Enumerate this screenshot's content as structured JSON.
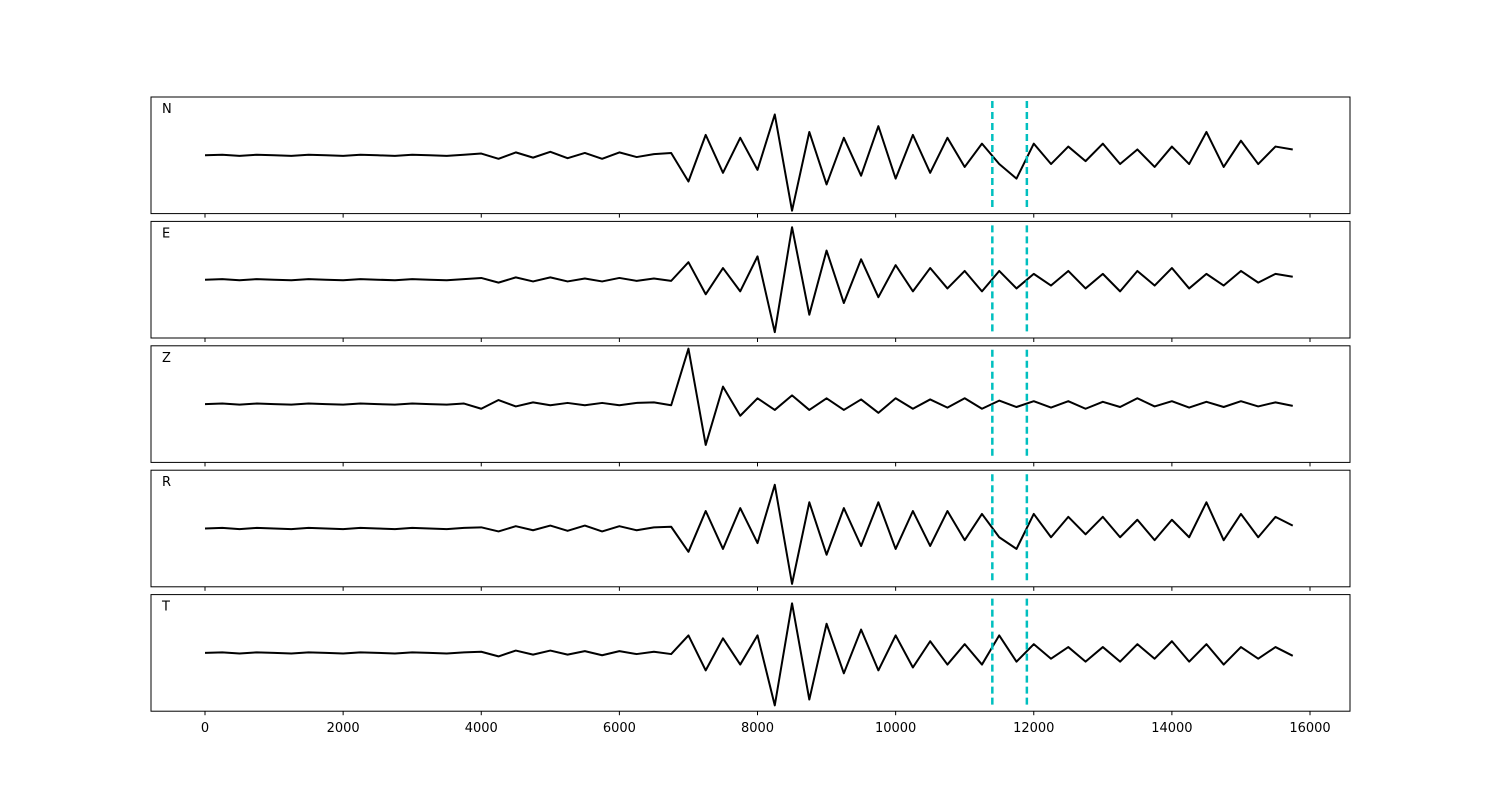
{
  "chart_data": [
    {
      "type": "line",
      "label": "N",
      "color": "#000000",
      "linewidth": 2,
      "vlines": [
        11400,
        11900
      ],
      "vline_color": "#00bfbf",
      "xlim": [
        -782,
        16579
      ],
      "ylim": [
        -1,
        1
      ],
      "xticks": [
        0,
        2000,
        4000,
        6000,
        8000,
        10000,
        12000,
        14000,
        16000
      ],
      "x": [
        0,
        250,
        500,
        750,
        1000,
        1250,
        1500,
        1750,
        2000,
        2250,
        2500,
        2750,
        3000,
        3250,
        3500,
        3750,
        4000,
        4250,
        4500,
        4750,
        5000,
        5250,
        5500,
        5750,
        6000,
        6250,
        6500,
        6750,
        7000,
        7250,
        7500,
        7750,
        8000,
        8250,
        8500,
        8750,
        9000,
        9250,
        9500,
        9750,
        10000,
        10250,
        10500,
        10750,
        11000,
        11250,
        11500,
        11750,
        12000,
        12250,
        12500,
        12750,
        13000,
        13250,
        13500,
        13750,
        14000,
        14250,
        14500,
        14750,
        15000,
        15250,
        15500,
        15750
      ],
      "values": [
        0,
        0.01,
        -0.01,
        0.01,
        0,
        -0.01,
        0.01,
        0,
        -0.01,
        0.01,
        0,
        -0.01,
        0.01,
        0,
        -0.01,
        0.01,
        0.03,
        -0.06,
        0.05,
        -0.04,
        0.06,
        -0.05,
        0.04,
        -0.06,
        0.05,
        -0.03,
        0.02,
        0.04,
        -0.45,
        0.35,
        -0.3,
        0.3,
        -0.25,
        0.7,
        -0.95,
        0.4,
        -0.5,
        0.3,
        -0.35,
        0.5,
        -0.4,
        0.35,
        -0.3,
        0.3,
        -0.2,
        0.2,
        -0.15,
        -0.4,
        0.2,
        -0.15,
        0.15,
        -0.1,
        0.2,
        -0.15,
        0.1,
        -0.2,
        0.15,
        -0.15,
        0.4,
        -0.2,
        0.25,
        -0.15,
        0.15,
        0.1
      ]
    },
    {
      "type": "line",
      "label": "E",
      "color": "#000000",
      "linewidth": 2,
      "vlines": [
        11400,
        11900
      ],
      "vline_color": "#00bfbf",
      "xlim": [
        -782,
        16579
      ],
      "ylim": [
        -1,
        1
      ],
      "xticks": [
        0,
        2000,
        4000,
        6000,
        8000,
        10000,
        12000,
        14000,
        16000
      ],
      "x": [
        0,
        250,
        500,
        750,
        1000,
        1250,
        1500,
        1750,
        2000,
        2250,
        2500,
        2750,
        3000,
        3250,
        3500,
        3750,
        4000,
        4250,
        4500,
        4750,
        5000,
        5250,
        5500,
        5750,
        6000,
        6250,
        6500,
        6750,
        7000,
        7250,
        7500,
        7750,
        8000,
        8250,
        8500,
        8750,
        9000,
        9250,
        9500,
        9750,
        10000,
        10250,
        10500,
        10750,
        11000,
        11250,
        11500,
        11750,
        12000,
        12250,
        12500,
        12750,
        13000,
        13250,
        13500,
        13750,
        14000,
        14250,
        14500,
        14750,
        15000,
        15250,
        15500,
        15750
      ],
      "values": [
        0,
        0.01,
        -0.01,
        0.01,
        0,
        -0.01,
        0.01,
        0,
        -0.01,
        0.01,
        0,
        -0.01,
        0.01,
        0,
        -0.01,
        0.01,
        0.03,
        -0.05,
        0.04,
        -0.03,
        0.04,
        -0.03,
        0.02,
        -0.03,
        0.03,
        -0.02,
        0.02,
        -0.02,
        0.3,
        -0.25,
        0.2,
        -0.2,
        0.4,
        -0.9,
        0.9,
        -0.6,
        0.5,
        -0.4,
        0.35,
        -0.3,
        0.25,
        -0.2,
        0.2,
        -0.15,
        0.15,
        -0.2,
        0.15,
        -0.15,
        0.1,
        -0.1,
        0.15,
        -0.15,
        0.1,
        -0.2,
        0.15,
        -0.1,
        0.2,
        -0.15,
        0.1,
        -0.1,
        0.15,
        -0.05,
        0.1,
        0.05
      ]
    },
    {
      "type": "line",
      "label": "Z",
      "color": "#000000",
      "linewidth": 2,
      "vlines": [
        11400,
        11900
      ],
      "vline_color": "#00bfbf",
      "xlim": [
        -782,
        16579
      ],
      "ylim": [
        -1,
        1
      ],
      "xticks": [
        0,
        2000,
        4000,
        6000,
        8000,
        10000,
        12000,
        14000,
        16000
      ],
      "x": [
        0,
        250,
        500,
        750,
        1000,
        1250,
        1500,
        1750,
        2000,
        2250,
        2500,
        2750,
        3000,
        3250,
        3500,
        3750,
        4000,
        4250,
        4500,
        4750,
        5000,
        5250,
        5500,
        5750,
        6000,
        6250,
        6500,
        6750,
        7000,
        7250,
        7500,
        7750,
        8000,
        8250,
        8500,
        8750,
        9000,
        9250,
        9500,
        9750,
        10000,
        10250,
        10500,
        10750,
        11000,
        11250,
        11500,
        11750,
        12000,
        12250,
        12500,
        12750,
        13000,
        13250,
        13500,
        13750,
        14000,
        14250,
        14500,
        14750,
        15000,
        15250,
        15500,
        15750
      ],
      "values": [
        0,
        0.01,
        -0.01,
        0.01,
        0,
        -0.01,
        0.01,
        0,
        -0.01,
        0.01,
        0,
        -0.01,
        0.01,
        0,
        -0.01,
        0.01,
        -0.08,
        0.07,
        -0.04,
        0.03,
        -0.02,
        0.02,
        -0.02,
        0.02,
        -0.02,
        0.02,
        0.03,
        -0.02,
        0.95,
        -0.7,
        0.3,
        -0.2,
        0.1,
        -0.1,
        0.15,
        -0.1,
        0.1,
        -0.1,
        0.08,
        -0.15,
        0.1,
        -0.08,
        0.08,
        -0.06,
        0.1,
        -0.08,
        0.06,
        -0.05,
        0.05,
        -0.06,
        0.05,
        -0.08,
        0.04,
        -0.05,
        0.1,
        -0.04,
        0.05,
        -0.06,
        0.04,
        -0.05,
        0.05,
        -0.04,
        0.03,
        -0.03
      ]
    },
    {
      "type": "line",
      "label": "R",
      "color": "#000000",
      "linewidth": 2,
      "vlines": [
        11400,
        11900
      ],
      "vline_color": "#00bfbf",
      "xlim": [
        -782,
        16579
      ],
      "ylim": [
        -1,
        1
      ],
      "xticks": [
        0,
        2000,
        4000,
        6000,
        8000,
        10000,
        12000,
        14000,
        16000
      ],
      "x": [
        0,
        250,
        500,
        750,
        1000,
        1250,
        1500,
        1750,
        2000,
        2250,
        2500,
        2750,
        3000,
        3250,
        3500,
        3750,
        4000,
        4250,
        4500,
        4750,
        5000,
        5250,
        5500,
        5750,
        6000,
        6250,
        6500,
        6750,
        7000,
        7250,
        7500,
        7750,
        8000,
        8250,
        8500,
        8750,
        9000,
        9250,
        9500,
        9750,
        10000,
        10250,
        10500,
        10750,
        11000,
        11250,
        11500,
        11750,
        12000,
        12250,
        12500,
        12750,
        13000,
        13250,
        13500,
        13750,
        14000,
        14250,
        14500,
        14750,
        15000,
        15250,
        15500,
        15750
      ],
      "values": [
        0,
        0.01,
        -0.01,
        0.01,
        0,
        -0.01,
        0.01,
        0,
        -0.01,
        0.01,
        0,
        -0.01,
        0.01,
        0,
        -0.01,
        0.01,
        0.02,
        -0.05,
        0.04,
        -0.03,
        0.05,
        -0.04,
        0.05,
        -0.05,
        0.04,
        -0.03,
        0.02,
        0.03,
        -0.4,
        0.3,
        -0.35,
        0.35,
        -0.25,
        0.75,
        -0.95,
        0.45,
        -0.45,
        0.35,
        -0.3,
        0.45,
        -0.35,
        0.3,
        -0.3,
        0.3,
        -0.2,
        0.25,
        -0.15,
        -0.35,
        0.25,
        -0.15,
        0.2,
        -0.1,
        0.2,
        -0.15,
        0.15,
        -0.2,
        0.15,
        -0.15,
        0.45,
        -0.2,
        0.25,
        -0.15,
        0.2,
        0.05
      ]
    },
    {
      "type": "line",
      "label": "T",
      "color": "#000000",
      "linewidth": 2,
      "vlines": [
        11400,
        11900
      ],
      "vline_color": "#00bfbf",
      "xlim": [
        -782,
        16579
      ],
      "ylim": [
        -1,
        1
      ],
      "xticks": [
        0,
        2000,
        4000,
        6000,
        8000,
        10000,
        12000,
        14000,
        16000
      ],
      "x": [
        0,
        250,
        500,
        750,
        1000,
        1250,
        1500,
        1750,
        2000,
        2250,
        2500,
        2750,
        3000,
        3250,
        3500,
        3750,
        4000,
        4250,
        4500,
        4750,
        5000,
        5250,
        5500,
        5750,
        6000,
        6250,
        6500,
        6750,
        7000,
        7250,
        7500,
        7750,
        8000,
        8250,
        8500,
        8750,
        9000,
        9250,
        9500,
        9750,
        10000,
        10250,
        10500,
        10750,
        11000,
        11250,
        11500,
        11750,
        12000,
        12250,
        12500,
        12750,
        13000,
        13250,
        13500,
        13750,
        14000,
        14250,
        14500,
        14750,
        15000,
        15250,
        15500,
        15750
      ],
      "values": [
        0,
        0.01,
        -0.01,
        0.01,
        0,
        -0.01,
        0.01,
        0,
        -0.01,
        0.01,
        0,
        -0.01,
        0.01,
        0,
        -0.01,
        0.01,
        0.02,
        -0.06,
        0.04,
        -0.03,
        0.04,
        -0.03,
        0.03,
        -0.04,
        0.03,
        -0.02,
        0.02,
        -0.02,
        0.3,
        -0.3,
        0.25,
        -0.2,
        0.3,
        -0.9,
        0.85,
        -0.8,
        0.5,
        -0.35,
        0.4,
        -0.3,
        0.3,
        -0.25,
        0.2,
        -0.2,
        0.15,
        -0.2,
        0.3,
        -0.15,
        0.15,
        -0.1,
        0.1,
        -0.15,
        0.1,
        -0.15,
        0.15,
        -0.1,
        0.2,
        -0.15,
        0.15,
        -0.2,
        0.1,
        -0.1,
        0.1,
        -0.05
      ]
    }
  ]
}
